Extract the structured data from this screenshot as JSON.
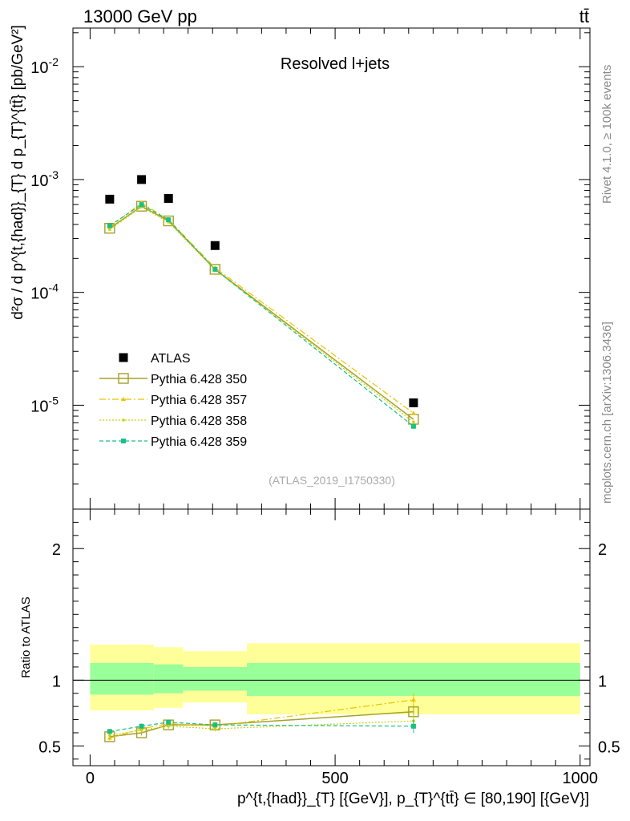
{
  "header": {
    "energy_label": "13000 GeV pp",
    "process_label": "tt̄",
    "analysis_title": "Resolved l+jets",
    "analysis_id": "(ATLAS_2019_I1750330)",
    "side_label_rivet": "Rivet 4.1.0, ≥ 100k events",
    "side_label_mcplots": "mcplots.cern.ch [arXiv:1306.3436]"
  },
  "colors": {
    "atlas": "#000000",
    "p350": "#a5a02a",
    "p357": "#e8c400",
    "p358": "#c8d400",
    "p359": "#19c081",
    "band_inner": "#99ff99",
    "band_outer": "#ffff99"
  },
  "chart_data": [
    {
      "type": "scatter",
      "title": "Resolved l+jets",
      "xlabel": "p^{t,{had}}_{T} [{GeV}], p_{T}^{tt̄} ∈ [80,190] [{GeV}]",
      "ylabel": "d²σ / d p^{t,{had}}_{T} d p_{T}^{tt̄} [pb/GeV²]",
      "yscale": "log",
      "xlim": [
        -35,
        1020
      ],
      "ylim": [
        1.2e-06,
        0.022
      ],
      "y_ticks": [
        {
          "value": 1e-05,
          "label": "10^-5"
        },
        {
          "value": 0.0001,
          "label": "10^-4"
        },
        {
          "value": 0.001,
          "label": "10^-3"
        },
        {
          "value": 0.01,
          "label": "10^-2"
        }
      ],
      "x": [
        40,
        105,
        160,
        255,
        660
      ],
      "series": [
        {
          "name": "ATLAS",
          "values": [
            0.00067,
            0.001,
            0.00068,
            0.00026,
            1.05e-05
          ]
        },
        {
          "name": "Pythia 6.428 350",
          "values": [
            0.00037,
            0.00058,
            0.00043,
            0.00016,
            7.5e-06
          ]
        },
        {
          "name": "Pythia 6.428 357",
          "values": [
            0.00038,
            0.00062,
            0.00044,
            0.000165,
            8.5e-06
          ]
        },
        {
          "name": "Pythia 6.428 358",
          "values": [
            0.00036,
            0.00057,
            0.00042,
            0.000158,
            7.1e-06
          ]
        },
        {
          "name": "Pythia 6.428 359",
          "values": [
            0.00039,
            0.0006,
            0.00044,
            0.00016,
            6.5e-06
          ]
        }
      ]
    },
    {
      "type": "line",
      "ylabel": "Ratio to ATLAS",
      "xlim": [
        -35,
        1020
      ],
      "ylim": [
        0.35,
        2.3
      ],
      "x_ticks": [
        0,
        500,
        1000
      ],
      "y_ticks": [
        0.5,
        1,
        2
      ],
      "bins": [
        {
          "low": 0,
          "high": 130,
          "inner": [
            0.89,
            1.13
          ],
          "outer": [
            0.77,
            1.27
          ]
        },
        {
          "low": 130,
          "high": 190,
          "inner": [
            0.9,
            1.12
          ],
          "outer": [
            0.79,
            1.25
          ]
        },
        {
          "low": 190,
          "high": 320,
          "inner": [
            0.92,
            1.1
          ],
          "outer": [
            0.83,
            1.22
          ]
        },
        {
          "low": 320,
          "high": 1000,
          "inner": [
            0.88,
            1.13
          ],
          "outer": [
            0.74,
            1.28
          ]
        }
      ],
      "x": [
        40,
        105,
        160,
        255,
        660
      ],
      "series": [
        {
          "name": "Pythia 6.428 350",
          "values": [
            0.57,
            0.6,
            0.66,
            0.66,
            0.76
          ]
        },
        {
          "name": "Pythia 6.428 357",
          "values": [
            0.56,
            0.63,
            0.67,
            0.65,
            0.85
          ]
        },
        {
          "name": "Pythia 6.428 358",
          "values": [
            0.58,
            0.62,
            0.65,
            0.63,
            0.69
          ]
        },
        {
          "name": "Pythia 6.428 359",
          "values": [
            0.61,
            0.65,
            0.68,
            0.66,
            0.65
          ]
        }
      ]
    }
  ]
}
